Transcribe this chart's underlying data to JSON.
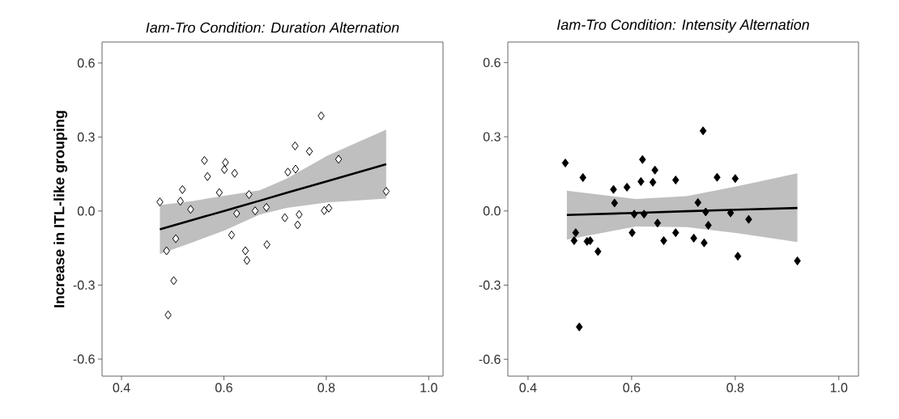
{
  "chart_data": [
    {
      "type": "scatter",
      "title": "Iam-Tro Condition: Duration Alternation",
      "ylabel": "Increase in ITL-like grouping",
      "xlim": [
        0.362,
        1.028
      ],
      "ylim": [
        -0.669,
        0.685
      ],
      "xticks": [
        0.4,
        0.6,
        0.8,
        {
          "value": 1,
          "label": "1.0"
        }
      ],
      "yticks": [
        0.6,
        0.3,
        {
          "value": 0,
          "label": "0.0"
        },
        -0.3,
        -0.6
      ],
      "series": [
        {
          "marker": "diamond",
          "color": "#ffffff",
          "x": [
            0.475,
            0.519,
            0.515,
            0.535,
            0.562,
            0.568,
            0.591,
            0.603,
            0.601,
            0.621,
            0.506,
            0.488,
            0.502,
            0.491,
            0.615,
            0.625,
            0.649,
            0.642,
            0.645,
            0.661,
            0.683,
            0.684,
            0.719,
            0.725,
            0.74,
            0.739,
            0.747,
            0.744,
            0.767,
            0.79,
            0.796,
            0.805,
            0.824,
            0.917
          ],
          "values": [
            0.037,
            0.087,
            0.04,
            0.007,
            0.205,
            0.14,
            0.075,
            0.197,
            0.168,
            0.153,
            -0.112,
            -0.161,
            -0.282,
            -0.421,
            -0.097,
            -0.01,
            0.067,
            -0.161,
            -0.2,
            0.001,
            0.015,
            -0.136,
            -0.027,
            0.158,
            0.17,
            0.264,
            -0.014,
            -0.056,
            0.242,
            0.386,
            0.002,
            0.012,
            0.21,
            0.08
          ]
        },
        {
          "type": "line",
          "marker": "none",
          "color": "#000000",
          "x": [
            0.475,
            0.537,
            0.601,
            0.67,
            0.723,
            0.802,
            0.917
          ],
          "values": [
            -0.074,
            -0.037,
            0.001,
            0.042,
            0.074,
            0.121,
            0.19
          ],
          "lower": [
            -0.174,
            -0.128,
            -0.079,
            -0.014,
            0.013,
            0.035,
            0.051
          ],
          "upper": [
            0.024,
            0.04,
            0.062,
            0.084,
            0.132,
            0.224,
            0.33
          ]
        }
      ]
    },
    {
      "type": "scatter",
      "title": "Iam-Tro Condition: Intensity Alternation",
      "xlim": [
        0.361,
        1.038
      ],
      "ylim": [
        -0.668,
        0.683
      ],
      "xticks": [
        0.4,
        0.6,
        0.8,
        {
          "value": 1,
          "label": "1.0"
        }
      ],
      "yticks": [
        0.6,
        0.3,
        {
          "value": 0,
          "label": "0.0"
        },
        -0.3,
        -0.6
      ],
      "series": [
        {
          "marker": "diamond",
          "color": "#000000",
          "x": [
            0.472,
            0.506,
            0.492,
            0.489,
            0.514,
            0.52,
            0.535,
            0.499,
            0.565,
            0.567,
            0.591,
            0.601,
            0.605,
            0.618,
            0.621,
            0.624,
            0.641,
            0.645,
            0.65,
            0.662,
            0.685,
            0.685,
            0.72,
            0.728,
            0.738,
            0.74,
            0.743,
            0.748,
            0.765,
            0.791,
            0.8,
            0.805,
            0.826,
            0.92
          ],
          "values": [
            0.194,
            0.135,
            -0.088,
            -0.12,
            -0.123,
            -0.12,
            -0.164,
            -0.469,
            0.087,
            0.032,
            0.096,
            -0.088,
            -0.013,
            0.119,
            0.208,
            -0.013,
            0.116,
            0.165,
            -0.049,
            -0.12,
            -0.088,
            0.125,
            -0.11,
            0.034,
            0.324,
            -0.129,
            -0.004,
            -0.058,
            0.136,
            -0.008,
            0.131,
            -0.183,
            -0.034,
            -0.202
          ]
        },
        {
          "type": "line",
          "marker": "none",
          "color": "#000000",
          "x": [
            0.475,
            0.608,
            0.706,
            0.804,
            0.92
          ],
          "values": [
            -0.016,
            -0.008,
            -0.001,
            0.005,
            0.012
          ],
          "lower": [
            -0.116,
            -0.063,
            -0.065,
            -0.09,
            -0.126
          ],
          "upper": [
            0.082,
            0.048,
            0.06,
            0.1,
            0.152
          ]
        }
      ]
    }
  ]
}
